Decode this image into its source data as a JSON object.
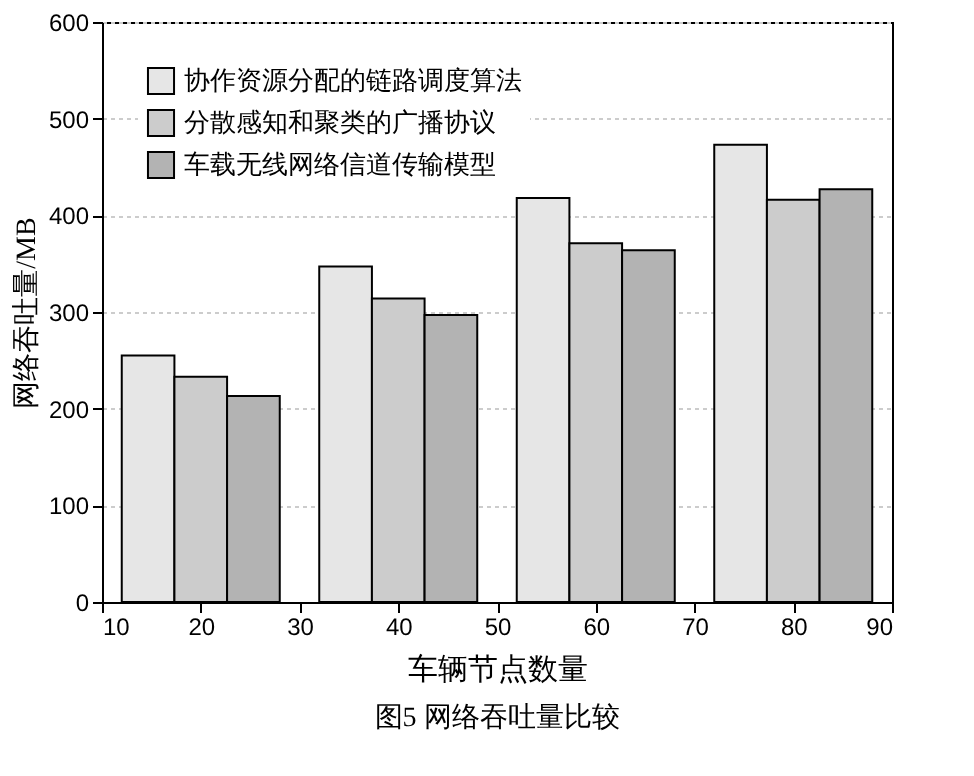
{
  "chart_data": {
    "type": "bar",
    "x": [
      20,
      40,
      60,
      80
    ],
    "xlabel": "车辆节点数量",
    "ylabel": "网络吞吐量/MB",
    "xlim": [
      10,
      90
    ],
    "xticks": [
      10,
      20,
      30,
      40,
      50,
      60,
      70,
      80,
      90
    ],
    "ylim": [
      0,
      600
    ],
    "yticks": [
      0,
      100,
      200,
      300,
      400,
      500,
      600
    ],
    "grid": "y",
    "legend": "top left",
    "series": [
      {
        "name": "协作资源分配的链路调度算法",
        "color": "#e6e6e6",
        "values": [
          255,
          347,
          418,
          473
        ]
      },
      {
        "name": "分散感知和聚类的广播协议",
        "color": "#cccccc",
        "values": [
          233,
          314,
          371,
          416
        ]
      },
      {
        "name": "车载无线网络信道传输模型",
        "color": "#b3b3b3",
        "values": [
          213,
          297,
          364,
          427
        ]
      }
    ],
    "annotations": [
      "图5  网络吞吐量比较"
    ]
  }
}
